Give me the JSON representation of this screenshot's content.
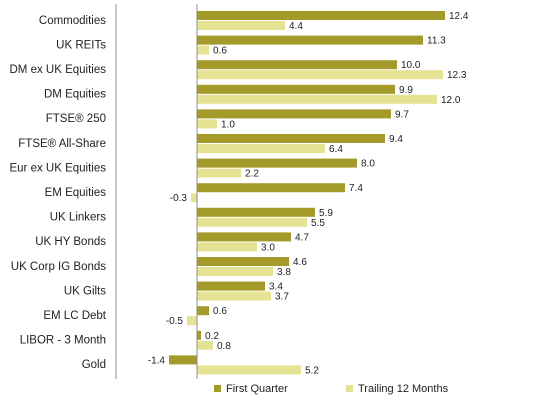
{
  "chart_data": {
    "type": "bar",
    "orientation": "horizontal",
    "categories": [
      "Commodities",
      "UK REITs",
      "DM ex UK Equities",
      "DM Equities",
      "FTSE® 250",
      "FTSE® All-Share",
      "Eur ex UK Equities",
      "EM Equities",
      "UK Linkers",
      "UK HY Bonds",
      "UK Corp IG Bonds",
      "UK Gilts",
      "EM LC Debt",
      "LIBOR - 3 Month",
      "Gold"
    ],
    "series": [
      {
        "name": "First Quarter",
        "color": "#a39a2a",
        "values": [
          12.4,
          11.3,
          10.0,
          9.9,
          9.7,
          9.4,
          8.0,
          7.4,
          5.9,
          4.7,
          4.6,
          3.4,
          0.6,
          0.2,
          -1.4
        ],
        "labels": [
          "12.4",
          "11.3",
          "10.0",
          "9.9",
          "9.7",
          "9.4",
          "8.0",
          "7.4",
          "5.9",
          "4.7",
          "4.6",
          "3.4",
          "0.6",
          "0.2",
          "-1.4"
        ]
      },
      {
        "name": "Trailing 12 Months",
        "color": "#e6e294",
        "values": [
          4.4,
          0.6,
          12.3,
          12.0,
          1.0,
          6.4,
          2.2,
          -0.3,
          5.5,
          3.0,
          3.8,
          3.7,
          -0.5,
          0.8,
          5.2
        ],
        "labels": [
          "4.4",
          "0.6",
          "12.3",
          "12.0",
          "1.0",
          "6.4",
          "2.2",
          "-0.3",
          "5.5",
          "3.0",
          "3.8",
          "3.7",
          "-0.5",
          "0.8",
          "5.2"
        ]
      }
    ],
    "xlim": [
      -3,
      14
    ],
    "grid": false,
    "legend_position": "bottom",
    "data_labels": true
  }
}
